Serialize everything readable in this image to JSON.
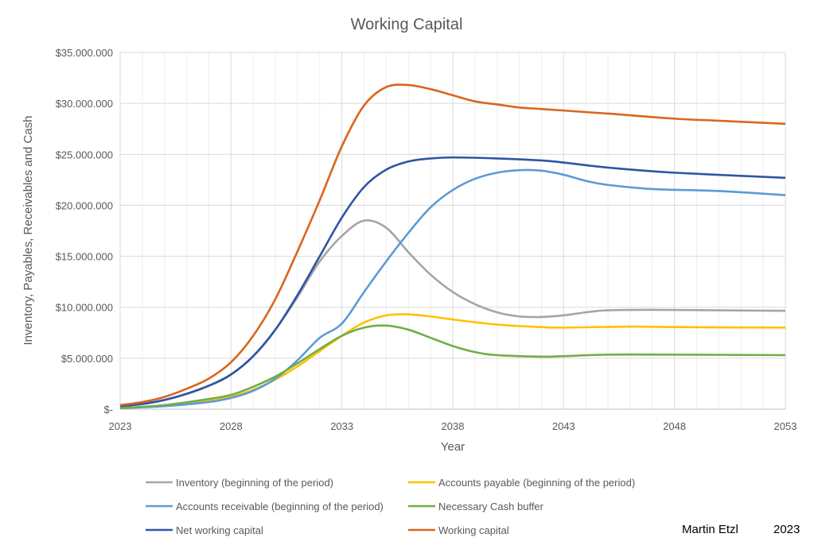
{
  "chart_data": {
    "type": "line",
    "title": "Working Capital",
    "xlabel": "Year",
    "ylabel": "Inventory, Payables, Receivables and Cash",
    "xlim": [
      2023,
      2053
    ],
    "ylim": [
      0,
      35000000
    ],
    "x_ticks": [
      "2023",
      "2028",
      "2033",
      "2038",
      "2043",
      "2048",
      "2053"
    ],
    "y_ticks": [
      "$-",
      "$5.000.000",
      "$10.000.000",
      "$15.000.000",
      "$20.000.000",
      "$25.000.000",
      "$30.000.000",
      "$35.000.000"
    ],
    "grid": true,
    "legend_position": "bottom",
    "series": [
      {
        "name": "Inventory (beginning of the period)",
        "color": "#a5a5a5",
        "x": [
          2023,
          2025,
          2027,
          2028,
          2029,
          2030,
          2031,
          2032,
          2033,
          2034,
          2035,
          2036,
          2037,
          2038,
          2039,
          2040,
          2041,
          2042,
          2043,
          2044,
          2045,
          2047,
          2050,
          2053
        ],
        "values": [
          0.3,
          0.9,
          2.3,
          3.4,
          5.2,
          7.8,
          11.0,
          14.5,
          17.0,
          18.5,
          17.8,
          15.4,
          13.2,
          11.5,
          10.3,
          9.5,
          9.1,
          9.05,
          9.2,
          9.5,
          9.7,
          9.75,
          9.7,
          9.65
        ]
      },
      {
        "name": "Accounts payable (beginning of the period)",
        "color": "#ffc000",
        "x": [
          2023,
          2025,
          2027,
          2028,
          2029,
          2030,
          2031,
          2032,
          2033,
          2034,
          2035,
          2036,
          2037,
          2038,
          2040,
          2042,
          2043,
          2046,
          2048,
          2053
        ],
        "values": [
          0.1,
          0.35,
          0.8,
          1.2,
          1.9,
          2.9,
          4.2,
          5.7,
          7.2,
          8.5,
          9.2,
          9.3,
          9.1,
          8.8,
          8.3,
          8.05,
          8.0,
          8.1,
          8.05,
          8.0
        ]
      },
      {
        "name": "Accounts receivable (beginning of the period)",
        "color": "#5b9bd5",
        "x": [
          2023,
          2025,
          2027,
          2028,
          2029,
          2030,
          2031,
          2032,
          2033,
          2034,
          2035,
          2036,
          2037,
          2038,
          2039,
          2040,
          2041,
          2042,
          2043,
          2044,
          2045,
          2047,
          2050,
          2053
        ],
        "values": [
          0.1,
          0.3,
          0.7,
          1.1,
          1.8,
          3.0,
          4.8,
          7.0,
          8.4,
          11.5,
          14.5,
          17.3,
          19.8,
          21.5,
          22.6,
          23.2,
          23.45,
          23.4,
          23.0,
          22.4,
          22.0,
          21.6,
          21.4,
          21.0
        ]
      },
      {
        "name": "Necessary Cash buffer",
        "color": "#70ad47",
        "x": [
          2023,
          2025,
          2027,
          2028,
          2029,
          2030,
          2031,
          2032,
          2033,
          2034,
          2035,
          2036,
          2037,
          2038,
          2039,
          2040,
          2042,
          2043,
          2045,
          2048,
          2053
        ],
        "values": [
          0.1,
          0.4,
          1.0,
          1.4,
          2.2,
          3.2,
          4.5,
          5.9,
          7.2,
          8.0,
          8.2,
          7.8,
          7.0,
          6.2,
          5.6,
          5.3,
          5.15,
          5.2,
          5.35,
          5.35,
          5.3
        ]
      },
      {
        "name": "Net working capital",
        "color": "#2f55a4",
        "x": [
          2023,
          2024,
          2025,
          2026,
          2027,
          2028,
          2029,
          2030,
          2031,
          2032,
          2033,
          2034,
          2035,
          2036,
          2037,
          2038,
          2040,
          2042,
          2043,
          2045,
          2048,
          2053
        ],
        "values": [
          0.3,
          0.5,
          0.9,
          1.5,
          2.3,
          3.4,
          5.2,
          7.8,
          11.2,
          15.0,
          18.8,
          21.8,
          23.5,
          24.3,
          24.6,
          24.7,
          24.6,
          24.4,
          24.2,
          23.7,
          23.2,
          22.7
        ]
      },
      {
        "name": "Working capital",
        "color": "#d9661f",
        "x": [
          2023,
          2024,
          2025,
          2026,
          2027,
          2028,
          2029,
          2030,
          2031,
          2032,
          2033,
          2034,
          2035,
          2036,
          2037,
          2038,
          2039,
          2040,
          2041,
          2042,
          2043,
          2045,
          2048,
          2050,
          2053
        ],
        "values": [
          0.4,
          0.7,
          1.2,
          2.0,
          3.0,
          4.6,
          7.2,
          10.8,
          15.5,
          20.5,
          25.8,
          29.8,
          31.6,
          31.8,
          31.4,
          30.8,
          30.2,
          29.9,
          29.6,
          29.45,
          29.3,
          29.0,
          28.5,
          28.3,
          28.0
        ]
      }
    ],
    "value_unit": "millions USD"
  },
  "footer": {
    "author": "Martin Etzl",
    "year": "2023"
  }
}
